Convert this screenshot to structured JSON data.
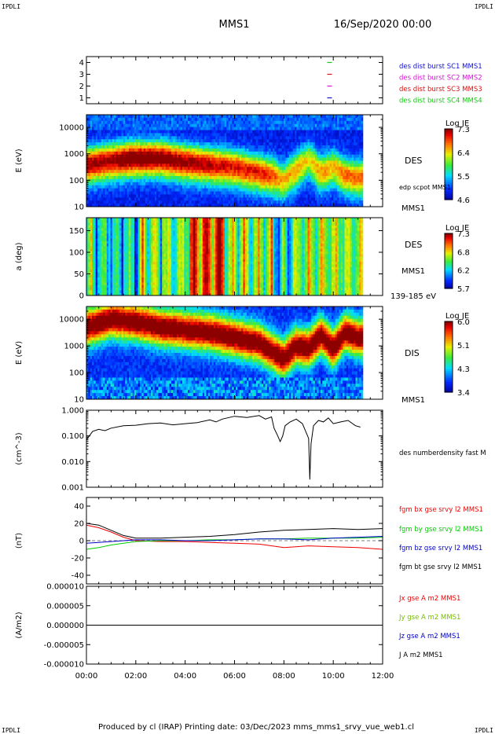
{
  "corners": {
    "top_left": "IPDLI",
    "top_right": "IPDLI",
    "bottom_left": "IPDLI",
    "bottom_right": "IPDLI"
  },
  "header": {
    "mission": "MMS1",
    "date": "16/Sep/2020 00:00"
  },
  "footer": {
    "text": "Produced by cl (IRAP)   Printing date: 03/Dec/2023   mms_mms1_srvy_vue_web1.cl"
  },
  "chart_data": [
    {
      "type": "scatter",
      "panel": "spacecraft-availability",
      "yticks": [
        "1",
        "2",
        "3",
        "4"
      ],
      "ylim": [
        0.5,
        4.5
      ],
      "xlim": [
        0,
        12
      ],
      "legend": [
        {
          "name": "des dist burst SC1 MMS1",
          "color": "#1010dd"
        },
        {
          "name": "des dist burst SC2 MMS2",
          "color": "#dd10dd"
        },
        {
          "name": "des dist burst SC3 MMS3",
          "color": "#dd1010"
        },
        {
          "name": "des dist burst SC4 MMS4",
          "color": "#10cc10"
        }
      ],
      "marks": [
        {
          "sc": 4,
          "t": 9.85,
          "color": "#10cc10"
        },
        {
          "sc": 3,
          "t": 9.85,
          "color": "#dd1010"
        },
        {
          "sc": 2,
          "t": 9.85,
          "color": "#dd10dd"
        },
        {
          "sc": 1,
          "t": 9.85,
          "color": "#1010dd"
        }
      ]
    },
    {
      "type": "heatmap",
      "panel": "des-energy-spectrogram",
      "ylabel": "E (eV)",
      "yscale": "log",
      "ylim": [
        10,
        30000
      ],
      "yticks": [
        "10",
        "100",
        "1000",
        "10000"
      ],
      "instrument": "DES",
      "spacecraft": "MMS1",
      "overlay_label": "edp scpot MMS1",
      "colorbar": {
        "label": "Log JE",
        "ticks": [
          "7.3",
          "6.4",
          "5.5",
          "4.6"
        ],
        "range": [
          4.6,
          7.3
        ]
      },
      "data_end_hour": 11.2,
      "profile": {
        "hours": [
          0,
          1,
          2,
          3,
          4,
          5,
          6,
          7,
          7.5,
          8,
          8.5,
          9,
          9.5,
          10,
          10.5,
          11,
          11.2
        ],
        "peak_log_energy": [
          2.6,
          2.75,
          2.85,
          2.85,
          2.7,
          2.6,
          2.5,
          2.3,
          2.2,
          2.0,
          2.4,
          2.8,
          2.3,
          2.5,
          2.2,
          2.1,
          2.1
        ],
        "intensity": [
          0.9,
          0.9,
          0.97,
          0.95,
          0.9,
          0.85,
          0.8,
          0.8,
          0.75,
          0.6,
          0.65,
          0.55,
          0.65,
          0.6,
          0.7,
          0.7,
          0.7
        ]
      }
    },
    {
      "type": "heatmap",
      "panel": "des-pitch-angle",
      "ylabel": "a (deg)",
      "ylim": [
        0,
        180
      ],
      "yticks": [
        "0",
        "50",
        "100",
        "150"
      ],
      "instrument": "DES",
      "spacecraft": "MMS1",
      "energy_band": "139-185 eV",
      "colorbar": {
        "label": "Log JE",
        "ticks": [
          "7.3",
          "6.8",
          "6.2",
          "5.7"
        ],
        "range": [
          5.7,
          7.3
        ]
      },
      "data_end_hour": 11.2
    },
    {
      "type": "heatmap",
      "panel": "dis-energy-spectrogram",
      "ylabel": "E (eV)",
      "yscale": "log",
      "ylim": [
        10,
        30000
      ],
      "yticks": [
        "10",
        "100",
        "1000",
        "10000"
      ],
      "instrument": "DIS",
      "spacecraft": "MMS1",
      "colorbar": {
        "label": "Log JE",
        "ticks": [
          "6.0",
          "5.1",
          "4.3",
          "3.4"
        ],
        "range": [
          3.4,
          6.0
        ]
      },
      "data_end_hour": 11.2,
      "profile": {
        "hours": [
          0,
          1,
          2,
          3,
          4,
          5,
          6,
          7,
          7.5,
          8,
          8.5,
          9,
          9.5,
          10,
          10.5,
          11,
          11.2
        ],
        "peak_log_energy": [
          3.7,
          4.0,
          3.9,
          3.7,
          3.6,
          3.5,
          3.3,
          3.1,
          2.8,
          2.5,
          3.0,
          2.9,
          3.4,
          2.9,
          3.5,
          3.3,
          3.3
        ]
      }
    },
    {
      "type": "line",
      "panel": "density",
      "ylabel": "(cm^-3)",
      "yscale": "log",
      "ylim": [
        0.001,
        1.0
      ],
      "yticks": [
        "0.001",
        "0.010",
        "0.100",
        "1.000"
      ],
      "series": [
        {
          "name": "des numberdensity fast M",
          "color": "#000000",
          "x": [
            0,
            0.25,
            0.5,
            0.75,
            1,
            1.5,
            2,
            2.5,
            3,
            3.5,
            4,
            4.5,
            5,
            5.25,
            5.5,
            6,
            6.5,
            7,
            7.25,
            7.5,
            7.6,
            7.75,
            7.85,
            7.95,
            8.05,
            8.25,
            8.5,
            8.75,
            9,
            9.05,
            9.1,
            9.2,
            9.4,
            9.6,
            9.8,
            10,
            10.3,
            10.6,
            10.9,
            11.1
          ],
          "y": [
            0.07,
            0.15,
            0.18,
            0.16,
            0.2,
            0.25,
            0.26,
            0.3,
            0.32,
            0.27,
            0.3,
            0.33,
            0.42,
            0.35,
            0.45,
            0.58,
            0.52,
            0.62,
            0.45,
            0.55,
            0.2,
            0.1,
            0.06,
            0.1,
            0.25,
            0.35,
            0.45,
            0.3,
            0.08,
            0.002,
            0.05,
            0.25,
            0.4,
            0.35,
            0.5,
            0.3,
            0.35,
            0.4,
            0.25,
            0.22
          ]
        }
      ]
    },
    {
      "type": "line",
      "panel": "magnetic-field",
      "ylabel": "(nT)",
      "ylim": [
        -50,
        50
      ],
      "yticks": [
        "-40",
        "-20",
        "0",
        "20",
        "40"
      ],
      "series": [
        {
          "name": "fgm bx gse srvy l2 MMS1",
          "color": "#ee0000",
          "x": [
            0,
            0.5,
            1,
            1.5,
            2,
            3,
            4,
            5,
            6,
            7,
            8,
            9,
            10,
            11,
            12
          ],
          "y": [
            18,
            15,
            10,
            4,
            0,
            -1,
            -1,
            -2,
            -3,
            -4,
            -8,
            -6,
            -7,
            -8,
            -10
          ]
        },
        {
          "name": "fgm by gse srvy l2 MMS1",
          "color": "#00cc00",
          "x": [
            0,
            0.5,
            1,
            1.5,
            2,
            3,
            4,
            5,
            6,
            7,
            8,
            9,
            10,
            11,
            12
          ],
          "y": [
            -10,
            -8,
            -5,
            -3,
            -1,
            0,
            0,
            1,
            1,
            2,
            2,
            3,
            3,
            3,
            4
          ]
        },
        {
          "name": "fgm bz gse srvy l2 MMS1",
          "color": "#0000cc",
          "x": [
            0,
            0.5,
            1,
            1.5,
            2,
            3,
            4,
            5,
            6,
            7,
            8,
            9,
            10,
            11,
            12
          ],
          "y": [
            -3,
            -2,
            -1,
            0,
            1,
            1,
            0,
            0,
            1,
            2,
            2,
            1,
            3,
            4,
            5
          ]
        },
        {
          "name": "fgm bt gse srvy l2 MMS1",
          "color": "#000000",
          "x": [
            0,
            0.5,
            1,
            1.5,
            2,
            3,
            4,
            5,
            6,
            7,
            8,
            9,
            10,
            11,
            12
          ],
          "y": [
            20,
            18,
            12,
            6,
            3,
            3,
            4,
            5,
            7,
            10,
            12,
            13,
            14,
            13,
            14
          ]
        }
      ]
    },
    {
      "type": "line",
      "panel": "current-density",
      "ylabel": "(A/m2)",
      "ylim": [
        -1e-05,
        1e-05
      ],
      "yticks": [
        "-0.000010",
        "-0.000005",
        "0.000000",
        "0.000005",
        "0.000010"
      ],
      "series": [
        {
          "name": "Jx gse A m2 MMS1",
          "color": "#ee0000",
          "x": [],
          "y": []
        },
        {
          "name": "Jy gse A m2 MMS1",
          "color": "#77bb00",
          "x": [],
          "y": []
        },
        {
          "name": "Jz gse A m2 MMS1",
          "color": "#0000cc",
          "x": [],
          "y": []
        },
        {
          "name": "J A m2 MMS1",
          "color": "#000000",
          "x": [
            0,
            12
          ],
          "y": [
            0,
            0
          ]
        }
      ],
      "xlabel_ticks": [
        "00:00",
        "02:00",
        "04:00",
        "06:00",
        "08:00",
        "10:00",
        "12:00"
      ],
      "xlim": [
        0,
        12
      ]
    }
  ]
}
